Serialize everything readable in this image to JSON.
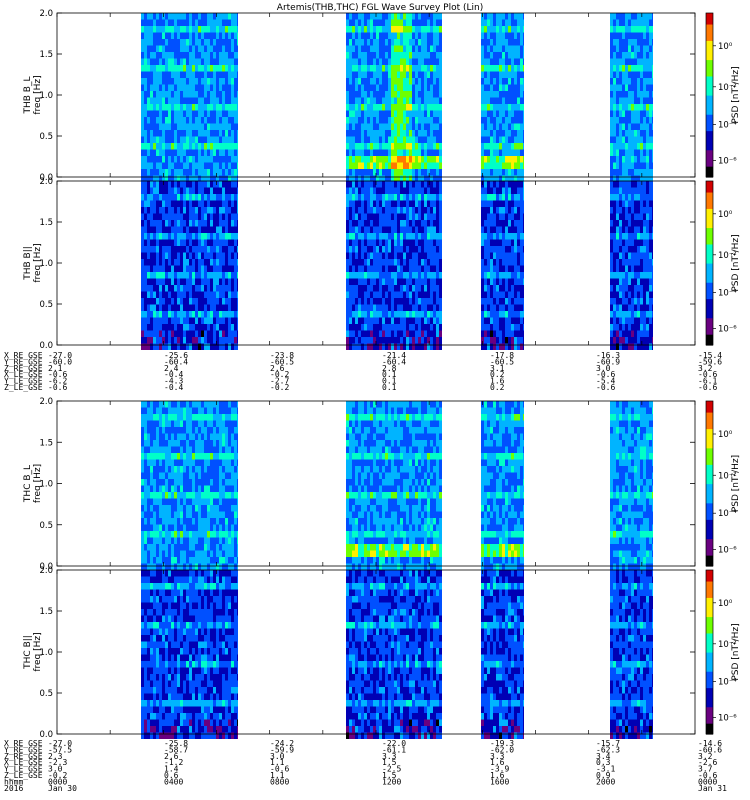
{
  "title": "Artemis(THB,THC) FGL Wave Survey Plot (Lin)",
  "chart_data": [
    {
      "type": "heatmap",
      "ylabel": "freq [Hz]",
      "panel_label": "THB B_L",
      "yticks": [
        "0.0",
        "0.5",
        "1.0",
        "1.5",
        "2.0"
      ],
      "ylim": [
        0,
        2
      ],
      "colorbar_label": "PSD [nT²/Hz]",
      "colorbar_ticks": [
        "10⁰",
        "10⁻²",
        "10⁻⁴",
        "10⁻⁶"
      ]
    },
    {
      "type": "heatmap",
      "ylabel": "freq [Hz]",
      "panel_label": "THB B||",
      "yticks": [
        "0.0",
        "0.5",
        "1.0",
        "1.5",
        "2.0"
      ],
      "ylim": [
        0,
        2
      ],
      "colorbar_label": "PSD [nT²/Hz]",
      "colorbar_ticks": [
        "10⁰",
        "10⁻²",
        "10⁻⁴",
        "10⁻⁶"
      ]
    },
    {
      "type": "heatmap",
      "ylabel": "freq [Hz]",
      "panel_label": "THC B_L",
      "yticks": [
        "0.0",
        "0.5",
        "1.0",
        "1.5",
        "2.0"
      ],
      "ylim": [
        0,
        2
      ],
      "colorbar_label": "PSD [nT²/Hz]",
      "colorbar_ticks": [
        "10⁰",
        "10⁻²",
        "10⁻⁴",
        "10⁻⁶"
      ]
    },
    {
      "type": "heatmap",
      "ylabel": "freq [Hz]",
      "panel_label": "THC B||",
      "yticks": [
        "0.0",
        "0.5",
        "1.0",
        "1.5",
        "2.0"
      ],
      "ylim": [
        0,
        2
      ],
      "colorbar_label": "PSD [nT²/Hz]",
      "colorbar_ticks": [
        "10⁰",
        "10⁻²",
        "10⁻⁴",
        "10⁻⁶"
      ]
    }
  ],
  "ephem_thb": {
    "labels": [
      "X_RE_GSE",
      "Y_RE_GSE",
      "Z_RE_GSE",
      "X_LE_GSE",
      "Y_LE_GSE",
      "Z_LE_GSE"
    ],
    "rows": [
      [
        "-27.0",
        "-25.6",
        "-23.8",
        "-21.4",
        "-17.8",
        "-16.3",
        "-15.4"
      ],
      [
        "-60.0",
        "-60.4",
        "-60.5",
        "-60.4",
        "-60.5",
        "-60.9",
        "-59.6"
      ],
      [
        "2.1",
        "2.4",
        "2.6",
        "2.8",
        "3.1",
        "3.0",
        "3.2"
      ],
      [
        "-0.6",
        "-0.4",
        "-0.2",
        "0.1",
        "0.2",
        "-0.6",
        "-0.6"
      ],
      [
        "-6.2",
        "-4.3",
        "-2.7",
        "0.1",
        "1.6",
        "-5.4",
        "-6.1"
      ],
      [
        "-0.6",
        "-0.4",
        "-0.2",
        "0.1",
        "0.2",
        "-0.6",
        "-0.6"
      ]
    ]
  },
  "ephem_thc": {
    "labels": [
      "X_RE_GSE",
      "Y_RE_GSE",
      "Z_RE_GSE",
      "X_LE_GSE",
      "Y_LE_GSE",
      "Z_LE_GSE",
      "hhmm",
      "2016"
    ],
    "rows": [
      [
        "-27.0",
        "-25.8",
        "-24.2",
        "-22.0",
        "-19.3",
        "-15.7",
        "-14.6"
      ],
      [
        "-57.5",
        "-58.7",
        "-59.9",
        "-61.1",
        "-62.0",
        "-62.3",
        "-60.6"
      ],
      [
        "2.3",
        "2.6",
        "3.0",
        "3.3",
        "3.3",
        "3.4",
        "3.2"
      ],
      [
        "-2.3",
        "-1.2",
        "1.1",
        "1.5",
        "1.6",
        "0.3",
        "-2.6"
      ],
      [
        "3.0",
        "1.4",
        "-0.6",
        "-2.5",
        "-3.9",
        "-3.1",
        "3.7"
      ],
      [
        "-0.2",
        "0.6",
        "1.1",
        "1.5",
        "1.6",
        "0.9",
        "-0.6"
      ],
      [
        "0000",
        "0400",
        "0800",
        "1200",
        "1600",
        "2000",
        "0000"
      ],
      [
        "Jan 30",
        "",
        "",
        "",
        "",
        "",
        "Jan 31"
      ]
    ]
  },
  "colors": {
    "background": "#ffffff",
    "colormap": [
      "#000000",
      "#6a0080",
      "#0000b4",
      "#0050ff",
      "#00b4ff",
      "#00ffc8",
      "#6eff00",
      "#fff000",
      "#ff7800",
      "#d20000"
    ]
  }
}
